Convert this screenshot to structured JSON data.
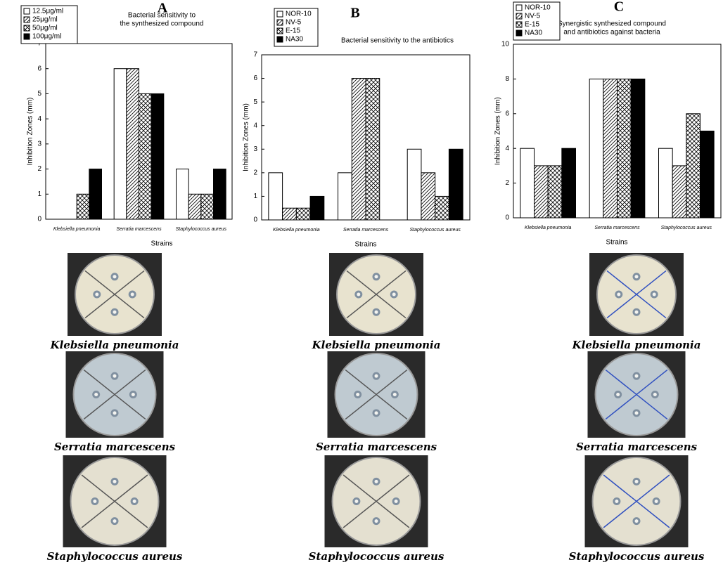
{
  "chart_data": [
    {
      "type": "bar",
      "panel": "A",
      "title": [
        "Bacterial sensitivity to",
        "the synthesized compound"
      ],
      "xlabel": "Strains",
      "ylabel": "Inhibition Zones (mm)",
      "categories": [
        "Klebsiella pneumonia",
        "Serratia marcescens",
        "Staphylococcus aureus"
      ],
      "series": [
        {
          "name": "12.5μg/ml",
          "color": "#ffffff",
          "hatch": "none",
          "values": [
            0,
            6,
            2
          ]
        },
        {
          "name": "25μg/ml",
          "color": "#ffffff",
          "hatch": "diagonal",
          "values": [
            0,
            6,
            1
          ]
        },
        {
          "name": "50μg/ml",
          "color": "#ffffff",
          "hatch": "cross",
          "values": [
            1,
            5,
            1
          ]
        },
        {
          "name": "100μg/ml",
          "color": "#000000",
          "hatch": "none",
          "values": [
            2,
            5,
            2
          ]
        }
      ],
      "ylim": [
        0,
        7
      ],
      "yticks": [
        0,
        1,
        2,
        3,
        4,
        5,
        6,
        7
      ],
      "legend": "upper left"
    },
    {
      "type": "bar",
      "panel": "B",
      "title": [
        "Bacterial sensitivity to the antibiotics"
      ],
      "xlabel": "Strains",
      "ylabel": "Inhibition Zones (mm)",
      "categories": [
        "Klebsiella pneumonia",
        "Serratia marcescens",
        "Staphylococcus aureus"
      ],
      "series": [
        {
          "name": "NOR-10",
          "color": "#ffffff",
          "hatch": "none",
          "values": [
            2,
            2,
            3
          ]
        },
        {
          "name": "NV-5",
          "color": "#ffffff",
          "hatch": "diagonal",
          "values": [
            0.5,
            6,
            2
          ]
        },
        {
          "name": "E-15",
          "color": "#ffffff",
          "hatch": "cross",
          "values": [
            0.5,
            6,
            1
          ]
        },
        {
          "name": "NA30",
          "color": "#000000",
          "hatch": "none",
          "values": [
            1,
            0,
            3
          ]
        }
      ],
      "ylim": [
        0,
        7
      ],
      "yticks": [
        0,
        1,
        2,
        3,
        4,
        5,
        6,
        7
      ],
      "legend": "upper left"
    },
    {
      "type": "bar",
      "panel": "C",
      "title": [
        "Synergistic synthesized compound",
        "and antibiotics against bacteria"
      ],
      "xlabel": "Strains",
      "ylabel": "Inhibition Zones (mm)",
      "categories": [
        "Klebsiella pneumonia",
        "Serratia marcescens",
        "Staphylococcus aureus"
      ],
      "series": [
        {
          "name": "NOR-10",
          "color": "#ffffff",
          "hatch": "none",
          "values": [
            4,
            8,
            4
          ]
        },
        {
          "name": "NV-5",
          "color": "#ffffff",
          "hatch": "diagonal",
          "values": [
            3,
            8,
            3
          ]
        },
        {
          "name": "E-15",
          "color": "#ffffff",
          "hatch": "cross",
          "values": [
            3,
            8,
            6
          ]
        },
        {
          "name": "NA30",
          "color": "#000000",
          "hatch": "none",
          "values": [
            4,
            8,
            5
          ]
        }
      ],
      "ylim": [
        0,
        10
      ],
      "yticks": [
        0,
        2,
        4,
        6,
        8,
        10
      ],
      "legend": "upper left"
    }
  ],
  "photos": [
    [
      "Klebsiella pneumonia",
      "Serratia marcescens",
      "Staphylococcus aureus"
    ],
    [
      "Klebsiella pneumonia",
      "Serratia marcescens",
      "Staphylococcus aureus"
    ],
    [
      "Klebsiella pneumonia",
      "Serratia marcescens",
      "Staphylococcus aureus"
    ]
  ]
}
